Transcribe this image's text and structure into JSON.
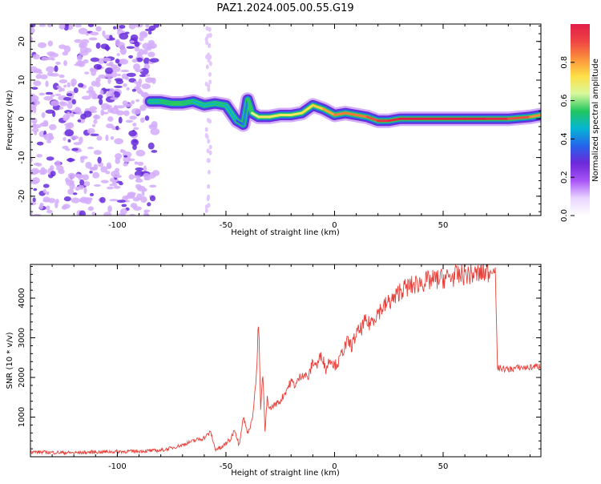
{
  "chart_data": [
    {
      "type": "heatmap",
      "title": "PAZ1.2024.005.00.55.G19",
      "xlabel": "Height of straight line (km)",
      "ylabel": "Frequency (Hz)",
      "xlim": [
        -140,
        95
      ],
      "ylim": [
        -25,
        24.5
      ],
      "xticks": [
        -100,
        -50,
        0,
        50
      ],
      "yticks": [
        -20,
        -10,
        0,
        10,
        20
      ],
      "colorbar": {
        "label": "Normalized spectral amplitude",
        "range": [
          0,
          1
        ],
        "ticks": [
          0.0,
          0.2,
          0.4,
          0.6,
          0.8
        ],
        "colormap": [
          "#ffffff",
          "#e9d5ff",
          "#a855f7",
          "#6d28d9",
          "#2563eb",
          "#06b6d4",
          "#22c55e",
          "#d9f99d",
          "#fde047",
          "#fb923c",
          "#ef4444",
          "#e11d48"
        ]
      },
      "ridge": {
        "height_km": [
          -85,
          -80,
          -75,
          -70,
          -65,
          -60,
          -55,
          -50,
          -45,
          -42,
          -40,
          -38,
          -35,
          -30,
          -25,
          -20,
          -15,
          -10,
          -5,
          0,
          5,
          10,
          15,
          20,
          25,
          30,
          40,
          50,
          60,
          70,
          80,
          90,
          95
        ],
        "frequency_hz": [
          4.5,
          4.5,
          4.0,
          4.0,
          4.5,
          3.5,
          4.0,
          3.5,
          -0.5,
          -1.5,
          5.0,
          1.5,
          0.5,
          0.5,
          1.0,
          1.0,
          1.5,
          3.5,
          2.5,
          1.0,
          1.5,
          1.0,
          0.5,
          -0.5,
          -0.5,
          0.0,
          0.0,
          0.0,
          0.0,
          0.0,
          0.0,
          0.5,
          1.0
        ],
        "amplitude": [
          0.45,
          0.5,
          0.55,
          0.55,
          0.5,
          0.45,
          0.5,
          0.5,
          0.4,
          0.3,
          0.5,
          0.6,
          0.7,
          0.7,
          0.7,
          0.7,
          0.7,
          0.75,
          0.75,
          0.85,
          0.85,
          0.85,
          0.85,
          0.95,
          0.95,
          1.0,
          1.0,
          1.0,
          1.0,
          1.0,
          0.95,
          0.85,
          0.8
        ]
      },
      "noise_region_km": [
        -140,
        -82
      ]
    },
    {
      "type": "line",
      "xlabel": "Height of straight line (km)",
      "ylabel": "SNR (10 * v/v)",
      "xlim": [
        -140,
        95
      ],
      "ylim": [
        0,
        4850
      ],
      "xticks": [
        -100,
        -50,
        0,
        50
      ],
      "yticks": [
        1000,
        2000,
        3000,
        4000
      ],
      "color": "#e8403a",
      "series": [
        {
          "x": [
            -140,
            -130,
            -120,
            -110,
            -100,
            -90,
            -80,
            -75,
            -70,
            -65,
            -60,
            -57,
            -55,
            -52,
            -50,
            -48,
            -46,
            -45,
            -44,
            -42,
            -40,
            -38,
            -36,
            -35,
            -34,
            -33,
            -32,
            -31,
            -30,
            -28,
            -25,
            -22,
            -20,
            -18,
            -15,
            -12,
            -10,
            -8,
            -6,
            -4,
            -2,
            0,
            2,
            4,
            6,
            8,
            10,
            12,
            14,
            16,
            18,
            20,
            22,
            25,
            28,
            30,
            35,
            40,
            45,
            50,
            55,
            60,
            65,
            70,
            73,
            74,
            75,
            80,
            85,
            90,
            95
          ],
          "y": [
            120,
            110,
            100,
            120,
            130,
            140,
            160,
            220,
            300,
            400,
            480,
            620,
            200,
            220,
            350,
            420,
            700,
            500,
            300,
            1000,
            600,
            900,
            2000,
            3400,
            1200,
            2100,
            600,
            1500,
            1200,
            1300,
            1400,
            1700,
            1900,
            1800,
            2100,
            2000,
            2400,
            2300,
            2600,
            2200,
            2500,
            2300,
            2400,
            2700,
            2900,
            2800,
            3100,
            3200,
            3400,
            3350,
            3500,
            3650,
            3750,
            3900,
            4000,
            4200,
            4300,
            4400,
            4450,
            4500,
            4550,
            4600,
            4600,
            4650,
            4700,
            4700,
            2250,
            2200,
            2250,
            2250,
            2300
          ]
        }
      ]
    }
  ]
}
